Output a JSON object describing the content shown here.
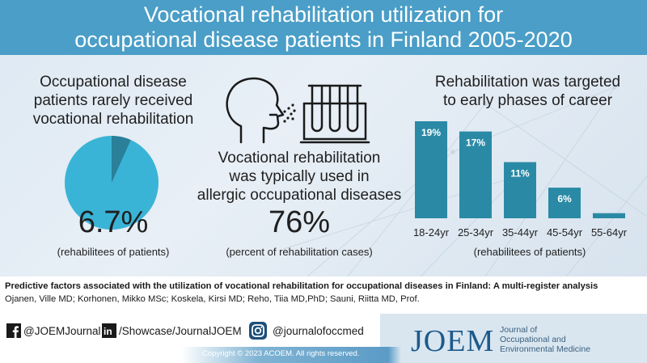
{
  "header": {
    "title_line1": "Vocational rehabilitation utilization for",
    "title_line2": "occupational disease patients in Finland 2005-2020"
  },
  "left_panel": {
    "title_lines": [
      "Occupational disease",
      "patients rarely received",
      "vocational rehabilitation"
    ],
    "pie_share_percent": 6.7,
    "stat": "6.7%",
    "subtitle": "(rehabilitees of patients)"
  },
  "middle_panel": {
    "icons": [
      "face-breathing-icon",
      "test-tubes-icon"
    ],
    "title_lines": [
      "Vocational rehabilitation",
      "was typically used in",
      "allergic occupational diseases"
    ],
    "stat": "76%",
    "subtitle": "(percent of rehabilitation cases)"
  },
  "right_panel": {
    "title_lines": [
      "Rehabilitation was targeted",
      "to early phases of career"
    ],
    "subtitle": "(rehabilitees of patients)"
  },
  "chart_data": {
    "type": "bar",
    "categories": [
      "18-24yr",
      "25-34yr",
      "35-44yr",
      "45-54yr",
      "55-64yr"
    ],
    "values": [
      19,
      17,
      11,
      6,
      1
    ],
    "data_labels": [
      "19%",
      "17%",
      "11%",
      "6%",
      ""
    ],
    "ylim": [
      0,
      19
    ],
    "bar_color": "#2a8aa6",
    "title": "Rehabilitation was targeted to early phases of career",
    "xlabel": "(rehabilitees of patients)",
    "ylabel": ""
  },
  "citation": {
    "title": "Predictive factors associated with the utilization of vocational rehabilitation for occupational diseases in Finland: A multi-register analysis",
    "authors": "Ojanen, Ville MD; Korhonen, Mikko MSc; Koskela, Kirsi MD; Reho, Tiia MD,PhD; Sauni, Riitta MD, Prof."
  },
  "footer": {
    "facebook": "@JOEMJournal",
    "linkedin": "/Showcase/JournalJOEM",
    "instagram": "@journalofoccmed",
    "copyright": "Copyright © 2023  ACOEM.  All rights reserved.",
    "logo_word": "JOEM",
    "logo_sub": [
      "Journal of",
      "Occupational and",
      "Environmental Medicine"
    ]
  },
  "colors": {
    "header_bg": "#4a9ec7",
    "pie_main": "#3ab4d6",
    "pie_slice": "#2a7f99",
    "logo_blue": "#1d5a8c"
  }
}
